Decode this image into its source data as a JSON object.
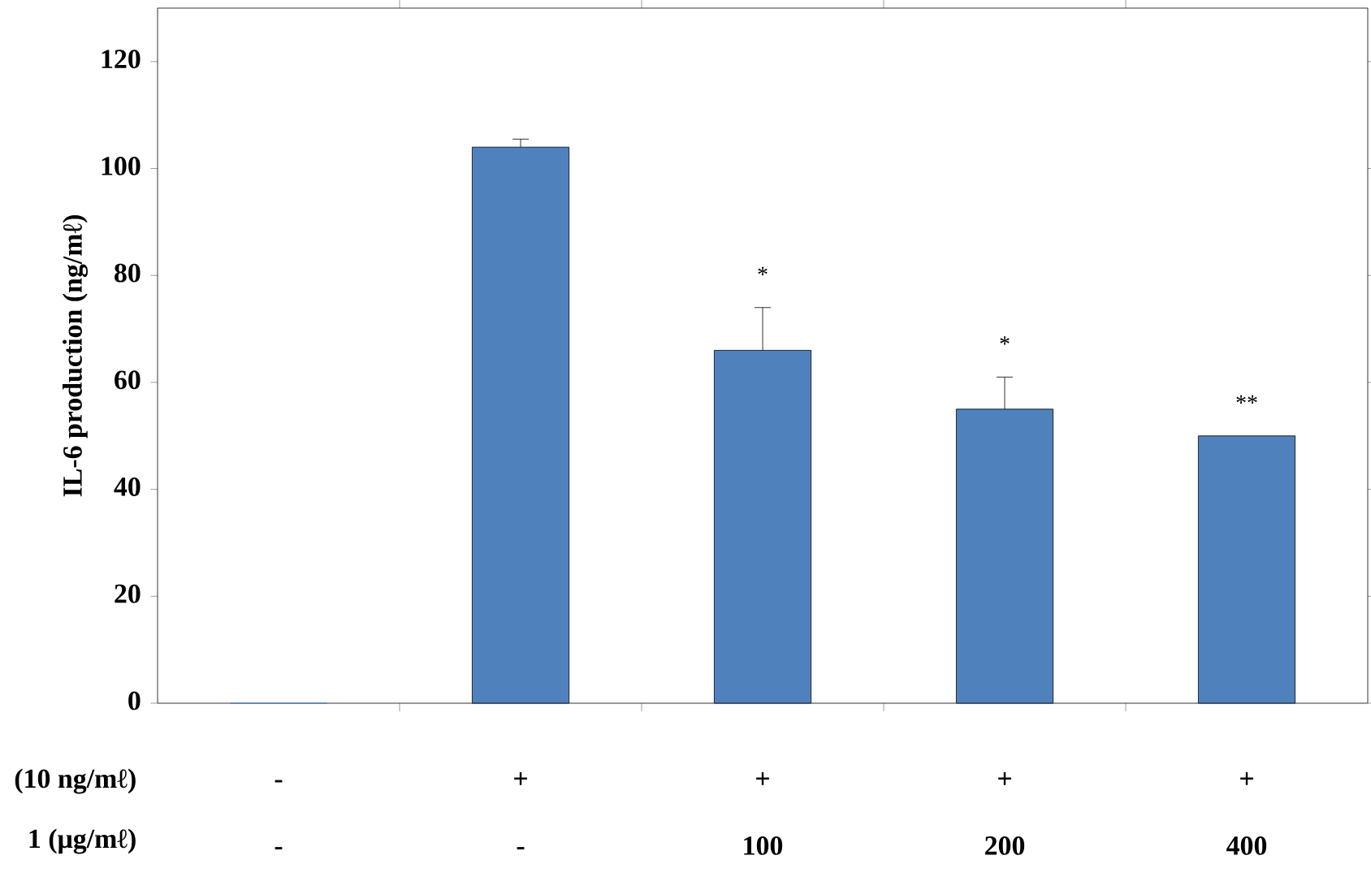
{
  "chart_data": {
    "type": "bar",
    "ylabel": "IL-6 production (ng/mℓ)",
    "categories": [
      "-",
      "-",
      "100",
      "200",
      "400"
    ],
    "values": [
      0,
      104,
      66,
      55,
      50
    ],
    "errors": [
      null,
      [
        104,
        105.5
      ],
      [
        66,
        74
      ],
      [
        55,
        61
      ],
      null
    ],
    "color": "#4f81bd",
    "ylim": [
      0,
      130
    ],
    "yticks": [
      0,
      20,
      40,
      60,
      80,
      100,
      120
    ],
    "annotations": [
      "(10 ng/mℓ)",
      "1 (μg/mℓ)",
      "-",
      "+",
      "+",
      "+",
      "+",
      {
        "text": "*",
        "x": "100",
        "y": 74
      },
      {
        "text": "*",
        "x": "200",
        "y": 61
      },
      {
        "text": "**",
        "x": "400",
        "y": 50
      }
    ]
  }
}
